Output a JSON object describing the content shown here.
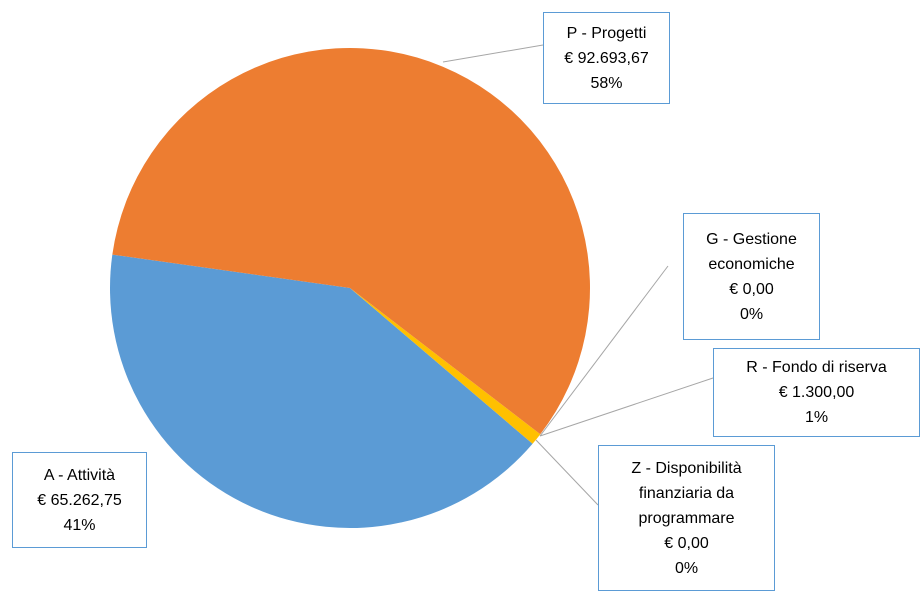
{
  "chart_data": {
    "type": "pie",
    "categories": [
      "P - Progetti",
      "G - Gestione economiche",
      "R - Fondo di riserva",
      "Z - Disponibilità finanziaria da programmare",
      "A - Attività"
    ],
    "values": [
      92693.67,
      0,
      1300,
      0,
      65262.75
    ],
    "value_labels": [
      "€ 92.693,67",
      "€ 0,00",
      "€ 1.300,00",
      "€ 0,00",
      "€ 65.262,75"
    ],
    "percent_labels": [
      "58%",
      "0%",
      "1%",
      "0%",
      "41%"
    ],
    "colors": [
      "#ED7D31",
      "#A5A5A5",
      "#FFC000",
      "#4472C4",
      "#5B9BD5"
    ]
  }
}
